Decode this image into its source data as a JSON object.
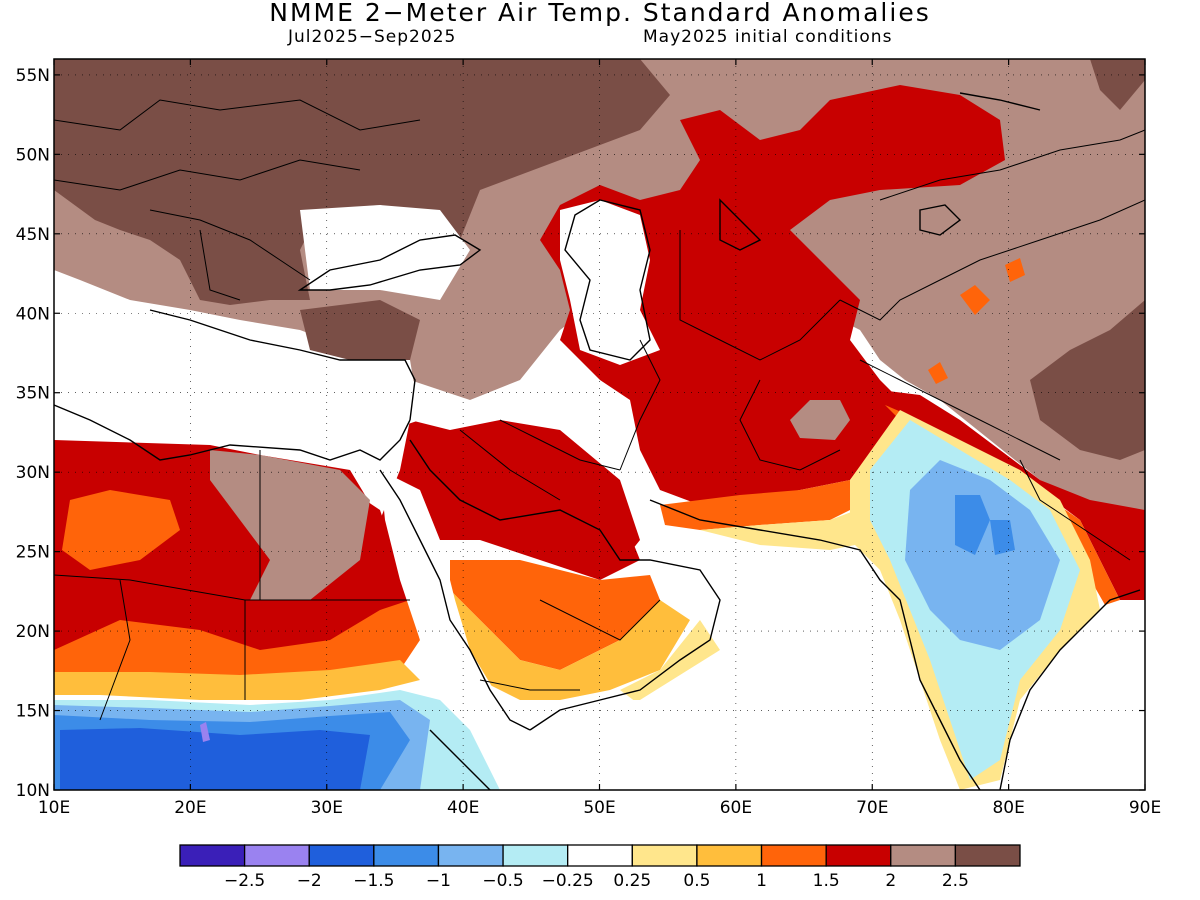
{
  "title": "NMME 2−Meter Air Temp. Standard Anomalies",
  "subtitle_period": "Jul2025−Sep2025",
  "subtitle_ic": "May2025 initial conditions",
  "map_extent": {
    "lon_range": [
      10,
      90
    ],
    "lat_range": [
      10,
      56
    ]
  },
  "lat_ticks": [
    {
      "value": 55,
      "label": "55N"
    },
    {
      "value": 50,
      "label": "50N"
    },
    {
      "value": 45,
      "label": "45N"
    },
    {
      "value": 40,
      "label": "40N"
    },
    {
      "value": 35,
      "label": "35N"
    },
    {
      "value": 30,
      "label": "30N"
    },
    {
      "value": 25,
      "label": "25N"
    },
    {
      "value": 20,
      "label": "20N"
    },
    {
      "value": 15,
      "label": "15N"
    },
    {
      "value": 10,
      "label": "10N"
    }
  ],
  "lon_ticks": [
    {
      "value": 10,
      "label": "10E"
    },
    {
      "value": 20,
      "label": "20E"
    },
    {
      "value": 30,
      "label": "30E"
    },
    {
      "value": 40,
      "label": "40E"
    },
    {
      "value": 50,
      "label": "50E"
    },
    {
      "value": 60,
      "label": "60E"
    },
    {
      "value": 70,
      "label": "70E"
    },
    {
      "value": 80,
      "label": "80E"
    },
    {
      "value": 90,
      "label": "90E"
    }
  ],
  "colorbar": {
    "colors": [
      "#3a1fb8",
      "#9a82f0",
      "#1f5fdc",
      "#3c8ce8",
      "#78b4f0",
      "#b4ecf4",
      "#ffffff",
      "#ffe68c",
      "#ffbe3c",
      "#ff640a",
      "#c80000",
      "#b48c82",
      "#7a4e46"
    ],
    "labels": [
      "−2.5",
      "−2",
      "−1.5",
      "−1",
      "−0.5",
      "−0.25",
      "0.25",
      "0.5",
      "1",
      "1.5",
      "2",
      "2.5"
    ]
  },
  "anomaly_regions": [
    {
      "name": "europe-balkans",
      "level": 2.5
    },
    {
      "name": "central-asia-hotspot",
      "level": 2
    },
    {
      "name": "tibetan-plateau",
      "level": 2.5
    },
    {
      "name": "sahel-cold",
      "level": -1.5
    },
    {
      "name": "india-cold",
      "level": -1
    },
    {
      "name": "sahara-warm",
      "level": 2
    },
    {
      "name": "arabia-warm",
      "level": 1.5
    }
  ]
}
